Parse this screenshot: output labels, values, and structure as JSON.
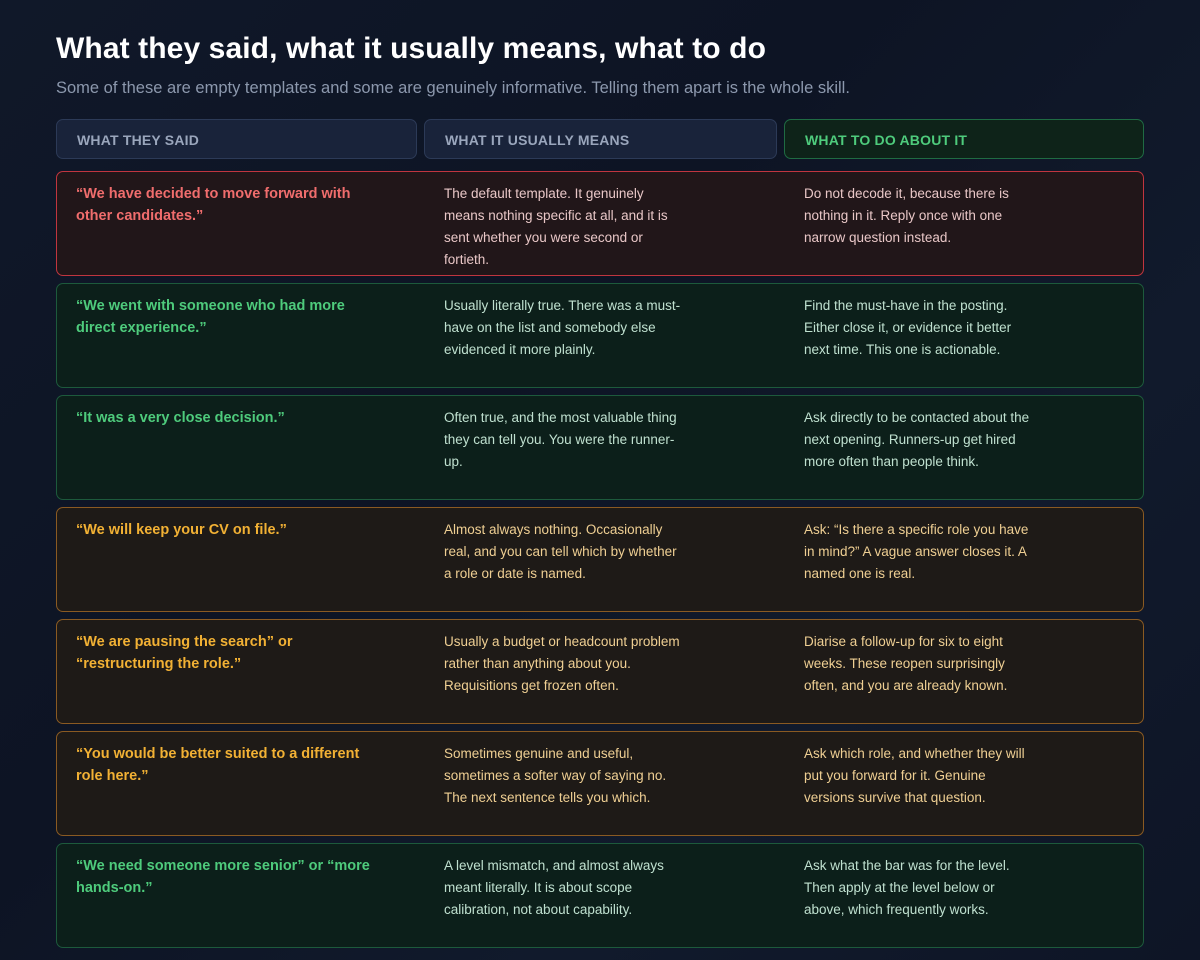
{
  "title": "What they said, what it usually means, what to do",
  "subtitle": "Some of these are empty templates and some are genuinely informative. Telling them apart is the whole skill.",
  "headers": {
    "said": "WHAT THEY SAID",
    "means": "WHAT IT USUALLY MEANS",
    "todo": "WHAT TO DO ABOUT IT"
  },
  "colors": {
    "red": "#f06d6d",
    "green": "#4ecb7c",
    "amber": "#f2b134"
  },
  "rows": [
    {
      "tone": "red",
      "said": "“We have decided to move forward with other candidates.”",
      "means": "The default template. It genuinely means nothing specific at all, and it is sent whether you were second or fortieth.",
      "todo": "Do not decode it, because there is nothing in it. Reply once with one narrow question instead."
    },
    {
      "tone": "green",
      "said": "“We went with someone who had more direct experience.”",
      "means": "Usually literally true. There was a must-have on the list and somebody else evidenced it more plainly.",
      "todo": "Find the must-have in the posting. Either close it, or evidence it better next time. This one is actionable."
    },
    {
      "tone": "green",
      "said": "“It was a very close decision.”",
      "means": "Often true, and the most valuable thing they can tell you. You were the runner-up.",
      "todo": "Ask directly to be contacted about the next opening. Runners-up get hired more often than people think."
    },
    {
      "tone": "amber",
      "said": "“We will keep your CV on file.”",
      "means": "Almost always nothing. Occasionally real, and you can tell which by whether a role or date is named.",
      "todo": "Ask: “Is there a specific role you have in mind?” A vague answer closes it. A named one is real."
    },
    {
      "tone": "amber",
      "said": "“We are pausing the search” or “restructuring the role.”",
      "means": "Usually a budget or headcount problem rather than anything about you. Requisitions get frozen often.",
      "todo": "Diarise a follow-up for six to eight weeks. These reopen surprisingly often, and you are already known."
    },
    {
      "tone": "amber",
      "said": "“You would be better suited to a different role here.”",
      "means": "Sometimes genuine and useful, sometimes a softer way of saying no. The next sentence tells you which.",
      "todo": "Ask which role, and whether they will put you forward for it. Genuine versions survive that question."
    },
    {
      "tone": "green",
      "said": "“We need someone more senior” or “more hands-on.”",
      "means": "A level mismatch, and almost always meant literally. It is about scope calibration, not about capability.",
      "todo": "Ask what the bar was for the level. Then apply at the level below or above, which frequently works."
    }
  ]
}
